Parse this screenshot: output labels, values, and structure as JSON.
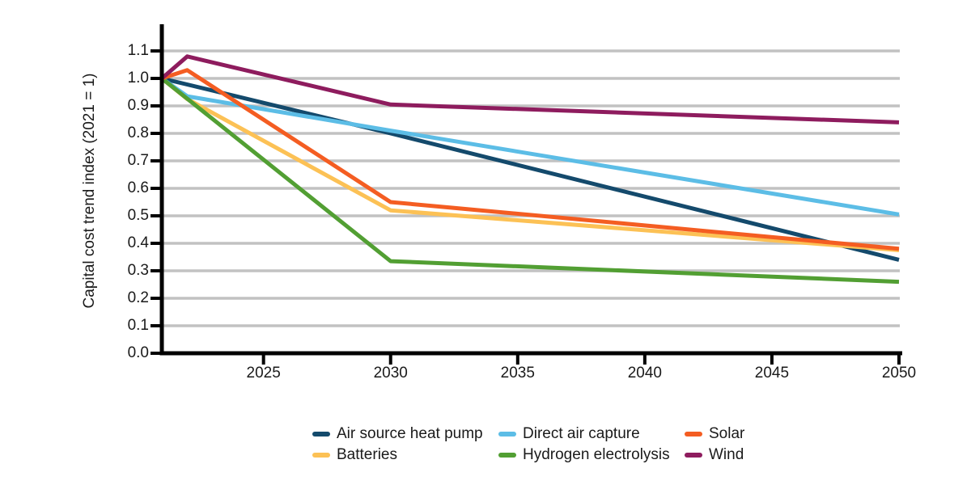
{
  "chart_data": {
    "type": "line",
    "title": "",
    "xlabel": "",
    "ylabel": "Capital cost trend index (2021 = 1)",
    "xlim": [
      2021,
      2050
    ],
    "ylim": [
      0.0,
      1.1
    ],
    "x_ticks": [
      "2025",
      "2030",
      "2035",
      "2040",
      "2045",
      "2050"
    ],
    "y_ticks": [
      "0.0",
      "0.1",
      "0.2",
      "0.3",
      "0.4",
      "0.5",
      "0.6",
      "0.7",
      "0.8",
      "0.9",
      "1.0",
      "1.1"
    ],
    "grid": "horizontal",
    "legend_position": "bottom",
    "legend_order_note": "two rows, column-major: col1=Air source heat pump/Batteries, col2=Direct air capture/Hydrogen electrolysis, col3=Solar/Wind",
    "series": [
      {
        "name": "Air source heat pump",
        "color": "#144a6c",
        "x": [
          2021,
          2030,
          2050
        ],
        "y": [
          1.0,
          0.8,
          0.34
        ]
      },
      {
        "name": "Batteries",
        "color": "#fcc155",
        "x": [
          2021,
          2022,
          2030,
          2050
        ],
        "y": [
          1.0,
          0.925,
          0.52,
          0.375
        ]
      },
      {
        "name": "Direct air capture",
        "color": "#5cbde6",
        "x": [
          2021,
          2022,
          2030,
          2050
        ],
        "y": [
          1.0,
          0.935,
          0.81,
          0.505
        ]
      },
      {
        "name": "Hydrogen electrolysis",
        "color": "#529f33",
        "x": [
          2021,
          2030,
          2050
        ],
        "y": [
          1.0,
          0.335,
          0.26
        ]
      },
      {
        "name": "Solar",
        "color": "#f45d22",
        "x": [
          2021,
          2022,
          2030,
          2050
        ],
        "y": [
          1.0,
          1.03,
          0.55,
          0.38
        ]
      },
      {
        "name": "Wind",
        "color": "#8e1c5e",
        "x": [
          2021,
          2022,
          2030,
          2050
        ],
        "y": [
          1.0,
          1.08,
          0.905,
          0.84
        ]
      }
    ]
  },
  "colors": {
    "background": "#ffffff",
    "axis": "#000000",
    "gridline": "#c2c2c2",
    "tick_label": "#1a1a1a"
  }
}
